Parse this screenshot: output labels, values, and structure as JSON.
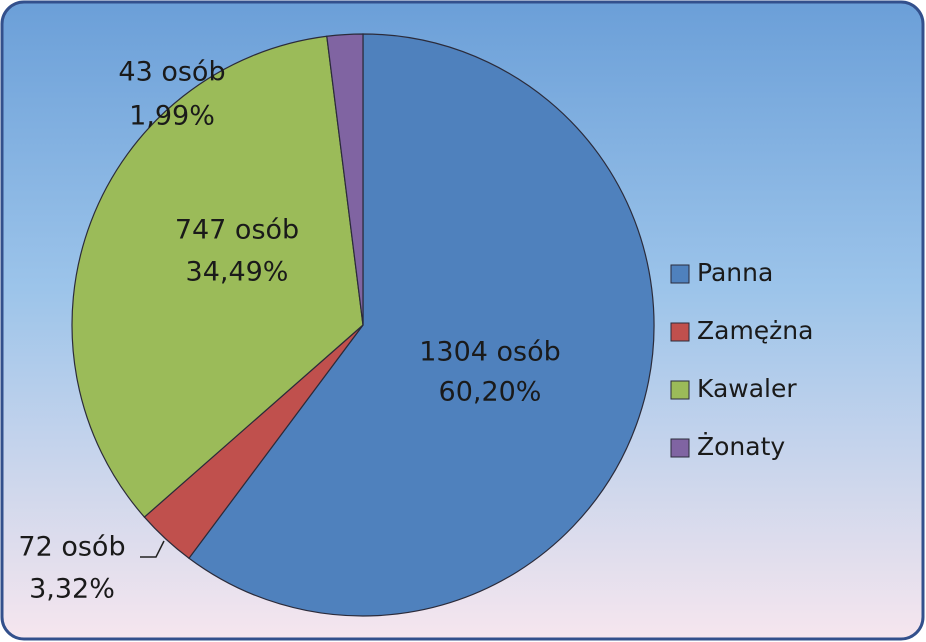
{
  "chart_data": {
    "type": "pie",
    "categories": [
      "Panna",
      "Zamężna",
      "Kawaler",
      "Żonaty"
    ],
    "values": [
      1304,
      72,
      747,
      43
    ],
    "value_labels": [
      "1304 osób",
      "72 osób",
      "747 osób",
      "43 osób"
    ],
    "percentages": [
      60.2,
      3.32,
      34.49,
      1.99
    ],
    "percentage_labels": [
      "60,20%",
      "3,32%",
      "34,49%",
      "1,99%"
    ],
    "colors": [
      "#4f81bd",
      "#c0504d",
      "#9bbb59",
      "#8064a2"
    ],
    "legend": "right"
  }
}
